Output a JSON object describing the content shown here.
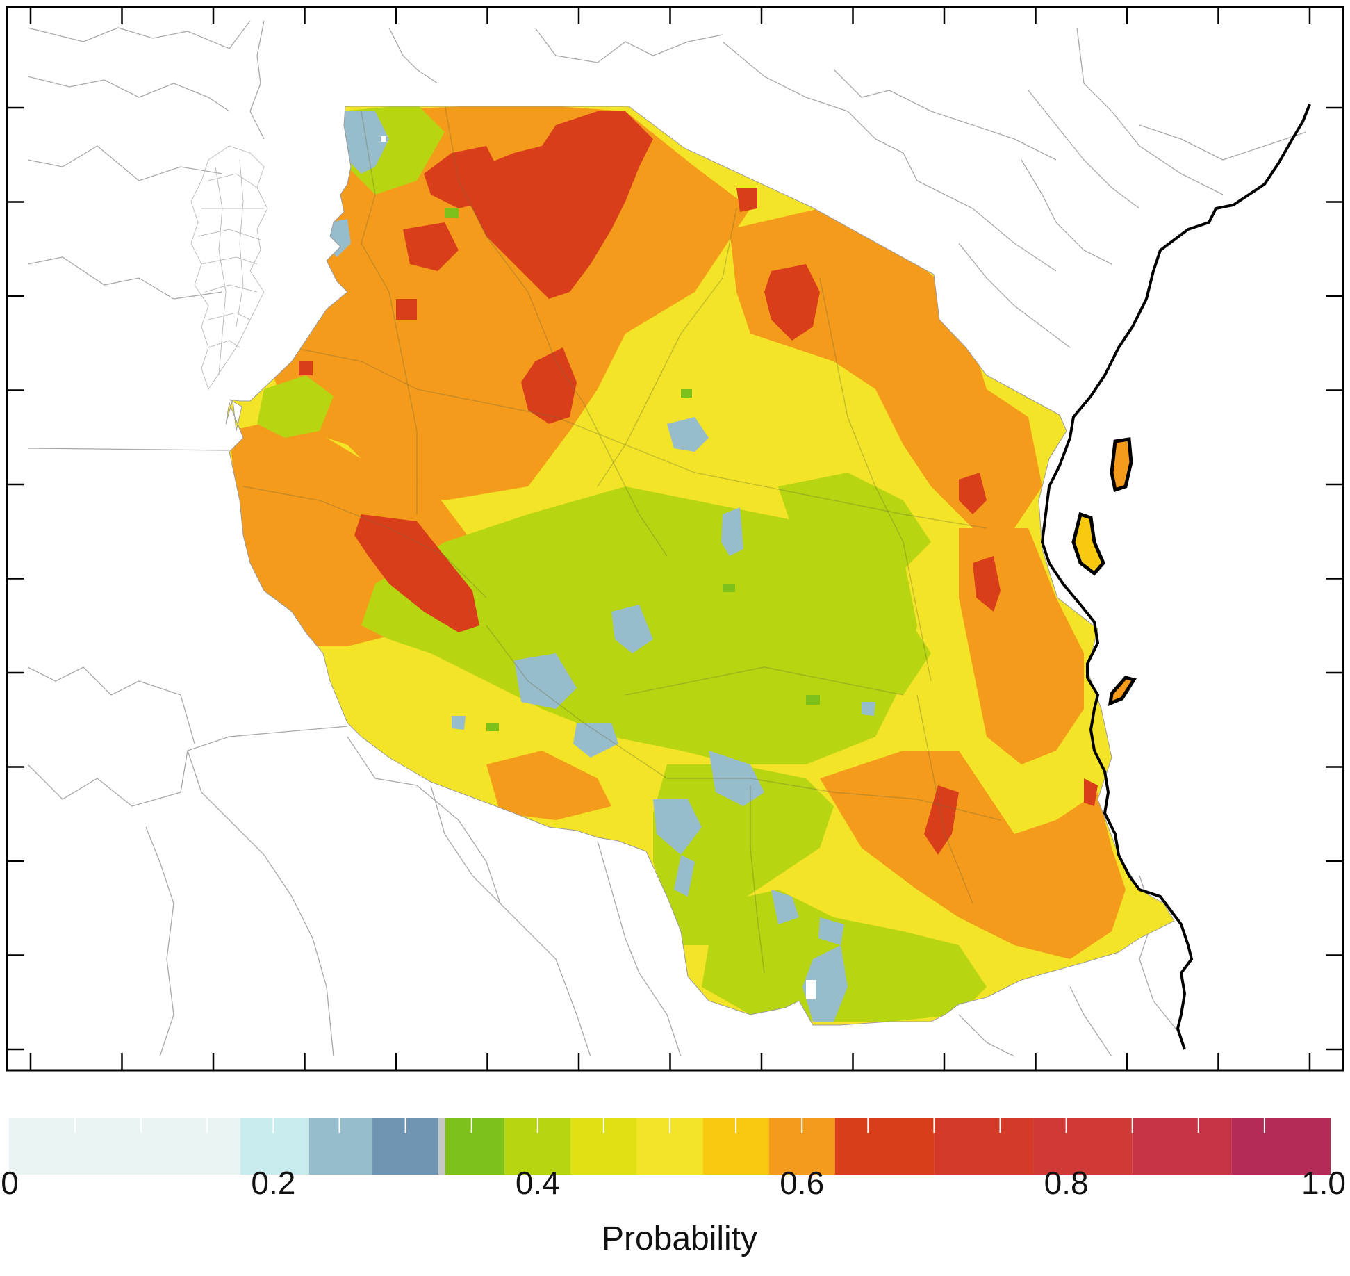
{
  "map": {
    "region": "Tanzania",
    "variable": "probability",
    "frame_ticks_x": 15,
    "frame_ticks_y": 11
  },
  "colorbar": {
    "title": "Probability",
    "tick_labels": [
      "0",
      "0.2",
      "0.4",
      "0.6",
      "0.8",
      "1.0"
    ],
    "tick_values": [
      0,
      0.2,
      0.4,
      0.6,
      0.8,
      1.0
    ],
    "bins": [
      {
        "from": 0.0,
        "to": 0.175,
        "color": "#eaf3f3"
      },
      {
        "from": 0.175,
        "to": 0.227,
        "color": "#c8ecee"
      },
      {
        "from": 0.227,
        "to": 0.275,
        "color": "#97bccb"
      },
      {
        "from": 0.275,
        "to": 0.325,
        "color": "#6e94b2"
      },
      {
        "from": 0.325,
        "to": 0.33,
        "color": "#c4c9c4"
      },
      {
        "from": 0.33,
        "to": 0.375,
        "color": "#7ec11a"
      },
      {
        "from": 0.375,
        "to": 0.425,
        "color": "#b7d510"
      },
      {
        "from": 0.425,
        "to": 0.475,
        "color": "#dfe114"
      },
      {
        "from": 0.475,
        "to": 0.525,
        "color": "#f3e427"
      },
      {
        "from": 0.525,
        "to": 0.575,
        "color": "#f7c90f"
      },
      {
        "from": 0.575,
        "to": 0.625,
        "color": "#f49b1c"
      },
      {
        "from": 0.625,
        "to": 0.7,
        "color": "#d93e1b"
      },
      {
        "from": 0.7,
        "to": 0.775,
        "color": "#d53a28"
      },
      {
        "from": 0.775,
        "to": 0.85,
        "color": "#cf3a36"
      },
      {
        "from": 0.85,
        "to": 0.925,
        "color": "#c73545"
      },
      {
        "from": 0.925,
        "to": 1.0,
        "color": "#b42b55"
      }
    ]
  },
  "colors": {
    "frame": "#000000",
    "borders": "#9a9a9a",
    "coastline": "#000000"
  }
}
